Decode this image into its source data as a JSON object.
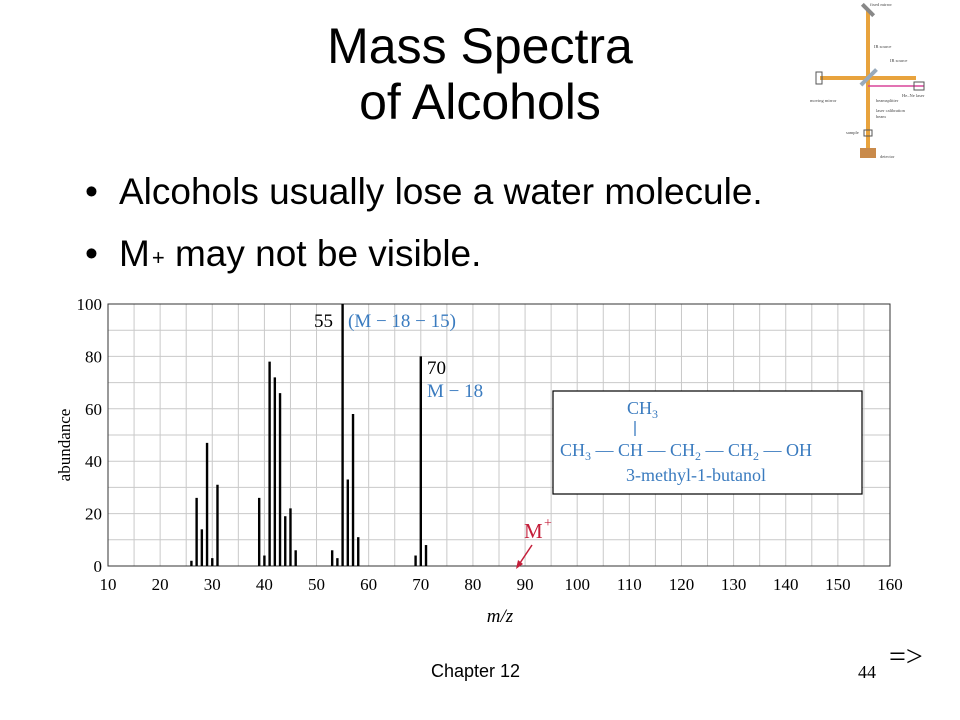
{
  "slide": {
    "title_line1": "Mass Spectra",
    "title_line2": "of Alcohols",
    "bullet1": "Alcohols usually lose a water molecule.",
    "bullet2_main": "M",
    "bullet2_sup": "+",
    "bullet2_rest": " may not be visible.",
    "footer": "Chapter 12",
    "page_number": "44",
    "next_arrow": "=>"
  },
  "colors": {
    "annotation_blue": "#3a7bbf",
    "annotation_red": "#c41e3a",
    "grid": "#c9c9c9",
    "laser": "#d8459a",
    "beam": "#e8a33d"
  },
  "inset": {
    "labels": [
      "fixed mirror",
      "IR source",
      "IR source",
      "He–Ne laser",
      "moving mirror",
      "beamsplitter",
      "laser calibration",
      "beam",
      "sample",
      "detector"
    ]
  },
  "annotations": {
    "peak55_label": "55",
    "peak55_note": "(M − 18 − 15)",
    "peak70_label": "70",
    "peak70_note": "M − 18",
    "mplus": "M",
    "mplus_sup": "+",
    "struct_ch3_top": "CH3",
    "struct_main": "CH3 — CH — CH2 — CH2 — OH",
    "struct_name": "3-methyl-1-butanol"
  },
  "chart_data": {
    "type": "bar",
    "xlabel": "m/z",
    "ylabel": "abundance",
    "xlim": [
      10,
      160
    ],
    "ylim": [
      0,
      100
    ],
    "xticks": [
      10,
      20,
      30,
      40,
      50,
      60,
      70,
      80,
      90,
      100,
      110,
      120,
      130,
      140,
      150,
      160
    ],
    "yticks": [
      0,
      20,
      40,
      60,
      80,
      100
    ],
    "grid": true,
    "x": [
      26,
      27,
      28,
      29,
      30,
      31,
      39,
      40,
      41,
      42,
      43,
      44,
      45,
      46,
      53,
      54,
      55,
      56,
      57,
      58,
      69,
      70,
      71
    ],
    "values": [
      2,
      26,
      14,
      47,
      3,
      31,
      26,
      4,
      78,
      72,
      66,
      19,
      22,
      6,
      6,
      3,
      100,
      33,
      58,
      11,
      4,
      80,
      8
    ]
  }
}
